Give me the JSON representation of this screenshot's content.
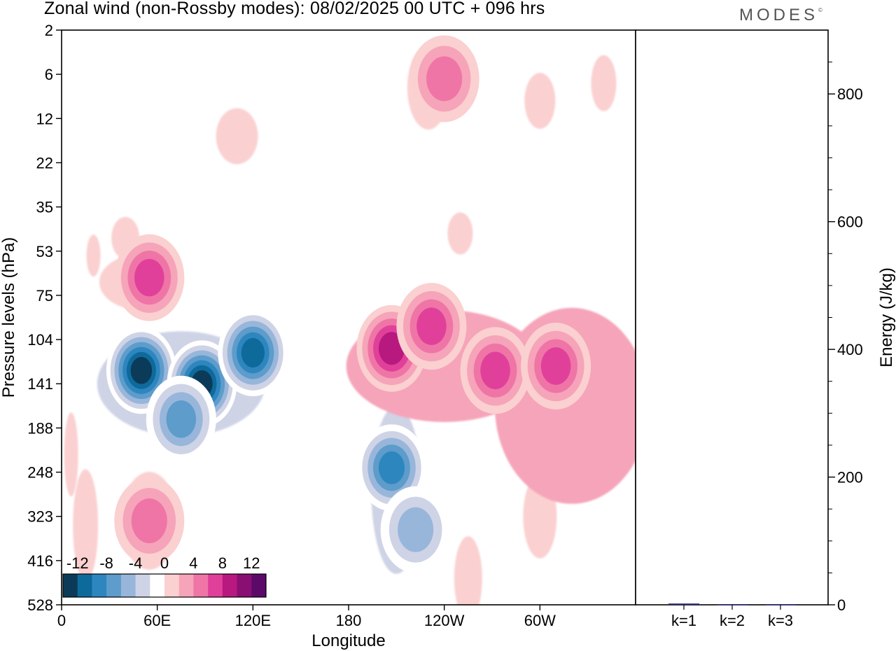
{
  "header": {
    "title": "Zonal wind (non-Rossby modes):  08/02/2025  00 UTC  + 096 hrs",
    "brand": "MODES"
  },
  "chart_data": [
    {
      "type": "heatmap",
      "variable": "Zonal wind (non-Rossby modes)",
      "xlabel": "Longitude",
      "ylabel": "Pressure levels (hPa)",
      "x_ticks": [
        "0",
        "60E",
        "120E",
        "180",
        "120W",
        "60W"
      ],
      "y_ticks": [
        "2",
        "6",
        "12",
        "22",
        "35",
        "53",
        "75",
        "104",
        "141",
        "188",
        "248",
        "323",
        "416",
        "528"
      ],
      "colorbar": {
        "labels": [
          "-12",
          "-8",
          "-4",
          "0",
          "4",
          "8",
          "12"
        ],
        "colors": [
          "#0b3b58",
          "#0f6a9c",
          "#2e86bf",
          "#5d9ccb",
          "#97b6da",
          "#cfd3e6",
          "#ffffff",
          "#fbd0d0",
          "#f6a4b9",
          "#ef75a6",
          "#e0409a",
          "#b8197f",
          "#8a0f73",
          "#5c0a6a"
        ]
      },
      "grid": false,
      "features": [
        {
          "lon": 50,
          "p_idx": 7.7,
          "value": -14
        },
        {
          "lon": 88,
          "p_idx": 8.0,
          "value": -14
        },
        {
          "lon": 120,
          "p_idx": 7.3,
          "value": -12
        },
        {
          "lon": 75,
          "p_idx": 8.8,
          "value": -8
        },
        {
          "lon": 207,
          "p_idx": 9.9,
          "value": -10
        },
        {
          "lon": 222,
          "p_idx": 11.3,
          "value": -6
        },
        {
          "lon": 55,
          "p_idx": 5.6,
          "value": 8
        },
        {
          "lon": 207,
          "p_idx": 7.2,
          "value": 10
        },
        {
          "lon": 232,
          "p_idx": 6.7,
          "value": 8
        },
        {
          "lon": 272,
          "p_idx": 7.7,
          "value": 8
        },
        {
          "lon": 310,
          "p_idx": 7.6,
          "value": 8
        },
        {
          "lon": 55,
          "p_idx": 11.1,
          "value": 6
        },
        {
          "lon": 240,
          "p_idx": 1.1,
          "value": 6
        }
      ]
    },
    {
      "type": "bar",
      "categories": [
        "k=1",
        "k=2",
        "k=3"
      ],
      "values": [
        2,
        1,
        1
      ],
      "ylabel": "Energy (J/kg)",
      "ylim": [
        0,
        900
      ],
      "y_ticks": [
        "0",
        "200",
        "400",
        "600",
        "800"
      ],
      "color": "#2a2a7a"
    }
  ]
}
